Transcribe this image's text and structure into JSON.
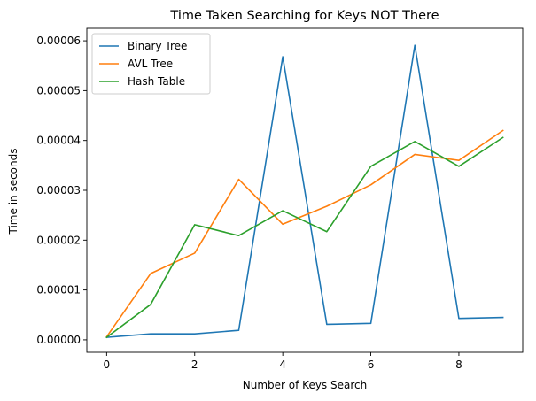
{
  "chart_data": {
    "type": "line",
    "title": "Time Taken Searching for Keys NOT There",
    "xlabel": "Number of Keys Search",
    "ylabel": "Time in seconds",
    "xlim": [
      -0.45,
      9.45
    ],
    "ylim": [
      -2.5e-06,
      6.25e-05
    ],
    "x": [
      0,
      1,
      2,
      3,
      4,
      5,
      6,
      7,
      8,
      9
    ],
    "xticks": [
      0,
      2,
      4,
      6,
      8
    ],
    "xtick_labels": [
      "0",
      "2",
      "4",
      "6",
      "8"
    ],
    "yticks": [
      0,
      1e-05,
      2e-05,
      3e-05,
      4e-05,
      5e-05,
      6e-05
    ],
    "ytick_labels": [
      "0.00000",
      "0.00001",
      "0.00002",
      "0.00003",
      "0.00004",
      "0.00005",
      "0.00006"
    ],
    "grid": false,
    "legend_position": "top-left",
    "series": [
      {
        "name": "Binary Tree",
        "color": "#1f77b4",
        "values": [
          5e-07,
          1.2e-06,
          1.2e-06,
          1.9e-06,
          5.68e-05,
          3.1e-06,
          3.3e-06,
          5.91e-05,
          4.3e-06,
          4.5e-06
        ]
      },
      {
        "name": "AVL Tree",
        "color": "#ff7f0e",
        "values": [
          6e-07,
          1.33e-05,
          1.74e-05,
          3.22e-05,
          2.32e-05,
          2.68e-05,
          3.11e-05,
          3.72e-05,
          3.6e-05,
          4.2e-05
        ]
      },
      {
        "name": "Hash Table",
        "color": "#2ca02c",
        "values": [
          5e-07,
          7.1e-06,
          2.31e-05,
          2.09e-05,
          2.59e-05,
          2.17e-05,
          3.48e-05,
          3.98e-05,
          3.48e-05,
          4.06e-05
        ]
      }
    ]
  }
}
